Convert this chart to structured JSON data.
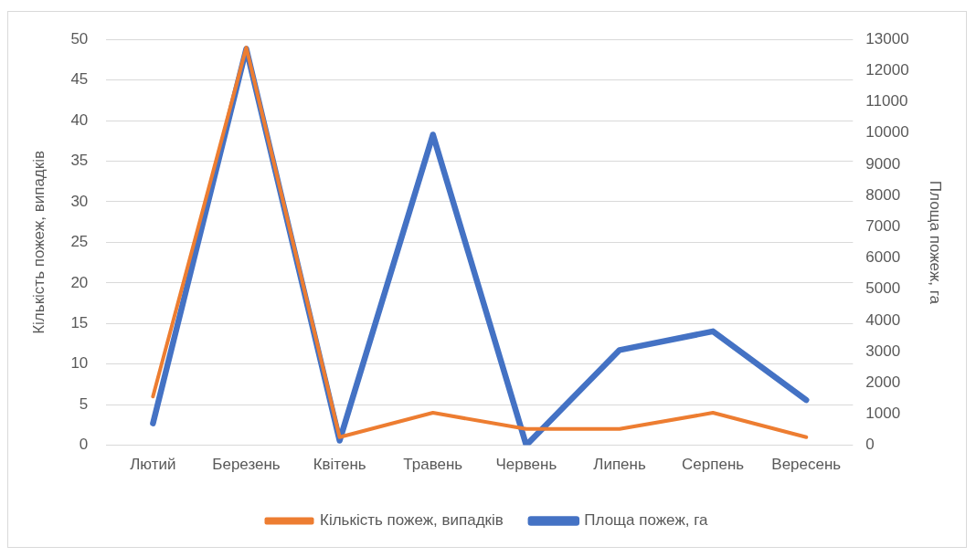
{
  "chart_data": {
    "type": "line",
    "categories": [
      "Лютий",
      "Березень",
      "Квітень",
      "Травень",
      "Червень",
      "Липень",
      "Серпень",
      "Вересень"
    ],
    "series": [
      {
        "name": "Кількість пожеж, випадків",
        "color": "#ed7d31",
        "values": [
          6,
          49,
          1,
          4,
          2,
          2,
          4,
          1
        ]
      },
      {
        "name": "Площа пожеж, га",
        "color": "#4472c4",
        "axis": "y2",
        "values": [
          700,
          12700,
          150,
          9950,
          0,
          3050,
          3650,
          1450
        ]
      }
    ],
    "ylabel": "Кількість пожеж, випадків",
    "y2label": "Площа пожеж, га",
    "ylim": [
      0,
      50
    ],
    "yticks": [
      0,
      5,
      10,
      15,
      20,
      25,
      30,
      35,
      40,
      45,
      50
    ],
    "y2lim": [
      0,
      13000
    ],
    "y2ticks": [
      0,
      1000,
      2000,
      3000,
      4000,
      5000,
      6000,
      7000,
      8000,
      9000,
      10000,
      11000,
      12000,
      13000
    ],
    "grid": "y",
    "legend": "bottom",
    "marker": "none",
    "line_style": "solid"
  }
}
